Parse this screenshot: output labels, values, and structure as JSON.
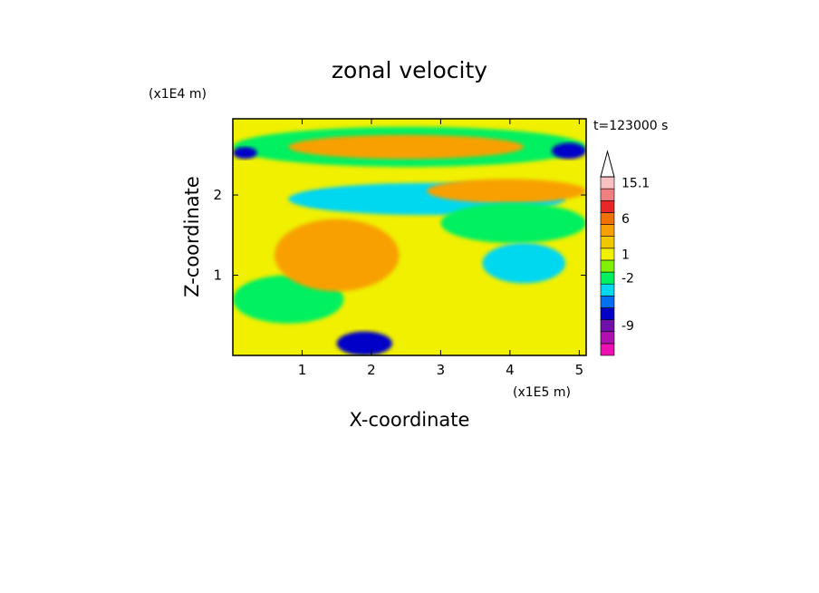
{
  "chart_data": {
    "type": "heatmap",
    "title": "zonal velocity",
    "xlabel": "X-coordinate",
    "ylabel": "Z-coordinate",
    "x_scale_label": "(x1E5 m)",
    "y_scale_label": "(x1E4 m)",
    "time_label": "t=123000 s",
    "xlim": [
      0,
      5.1
    ],
    "ylim": [
      0,
      2.95
    ],
    "x_ticks": [
      "1",
      "2",
      "3",
      "4",
      "5"
    ],
    "y_ticks": [
      "1",
      "2"
    ],
    "colorbar": {
      "tick_labels": [
        "15.1",
        "6",
        "1",
        "-2",
        "-9"
      ],
      "levels": [
        {
          "color": "#ee10b0"
        },
        {
          "color": "#b010b0"
        },
        {
          "color": "#7010a8"
        },
        {
          "color": "#0000c8"
        },
        {
          "color": "#0070f0"
        },
        {
          "color": "#00d8f0"
        },
        {
          "color": "#00f060"
        },
        {
          "color": "#80f000"
        },
        {
          "color": "#f0f000"
        },
        {
          "color": "#f0c800"
        },
        {
          "color": "#f8a000"
        },
        {
          "color": "#f07000"
        },
        {
          "color": "#e82828"
        },
        {
          "color": "#f08080"
        },
        {
          "color": "#f8c0c0"
        }
      ]
    },
    "field_regions": [
      {
        "name": "background",
        "color": "#f0f000"
      },
      {
        "name": "upper-green-band",
        "color": "#00f060",
        "x": [
          0,
          5.1
        ],
        "z": [
          2.35,
          2.85
        ]
      },
      {
        "name": "upper-orange-band",
        "color": "#f8a000",
        "x": [
          0.8,
          4.2
        ],
        "z": [
          2.45,
          2.75
        ]
      },
      {
        "name": "upper-blue-left",
        "color": "#0000c8",
        "x": [
          0,
          0.35
        ],
        "z": [
          2.45,
          2.6
        ]
      },
      {
        "name": "upper-blue-right",
        "color": "#0000c8",
        "x": [
          4.6,
          5.1
        ],
        "z": [
          2.45,
          2.65
        ]
      },
      {
        "name": "central-blue-jet",
        "color": "#0000c8",
        "x": [
          1,
          2.5
        ],
        "z": [
          1.85,
          2.05
        ]
      },
      {
        "name": "central-cyan-jet",
        "color": "#00d8f0",
        "x": [
          0.8,
          4.8
        ],
        "z": [
          1.75,
          2.15
        ]
      },
      {
        "name": "mid-orange-band",
        "color": "#f8a000",
        "x": [
          2.8,
          5.1
        ],
        "z": [
          1.9,
          2.2
        ]
      },
      {
        "name": "mid-green-band",
        "color": "#00f060",
        "x": [
          3,
          5.1
        ],
        "z": [
          1.4,
          1.9
        ]
      },
      {
        "name": "right-blue-blob",
        "color": "#0000c8",
        "x": [
          3.9,
          4.5
        ],
        "z": [
          1.15,
          1.35
        ]
      },
      {
        "name": "right-cyan-blob",
        "color": "#00d8f0",
        "x": [
          3.6,
          4.8
        ],
        "z": [
          0.9,
          1.4
        ]
      },
      {
        "name": "lower-green-left",
        "color": "#00f060",
        "x": [
          0,
          1.6
        ],
        "z": [
          0.4,
          1.0
        ]
      },
      {
        "name": "lower-orange-center",
        "color": "#f8a000",
        "x": [
          0.6,
          2.4
        ],
        "z": [
          0.8,
          1.7
        ]
      },
      {
        "name": "bottom-blue",
        "color": "#0000c8",
        "x": [
          1.5,
          2.3
        ],
        "z": [
          0,
          0.3
        ]
      }
    ]
  }
}
